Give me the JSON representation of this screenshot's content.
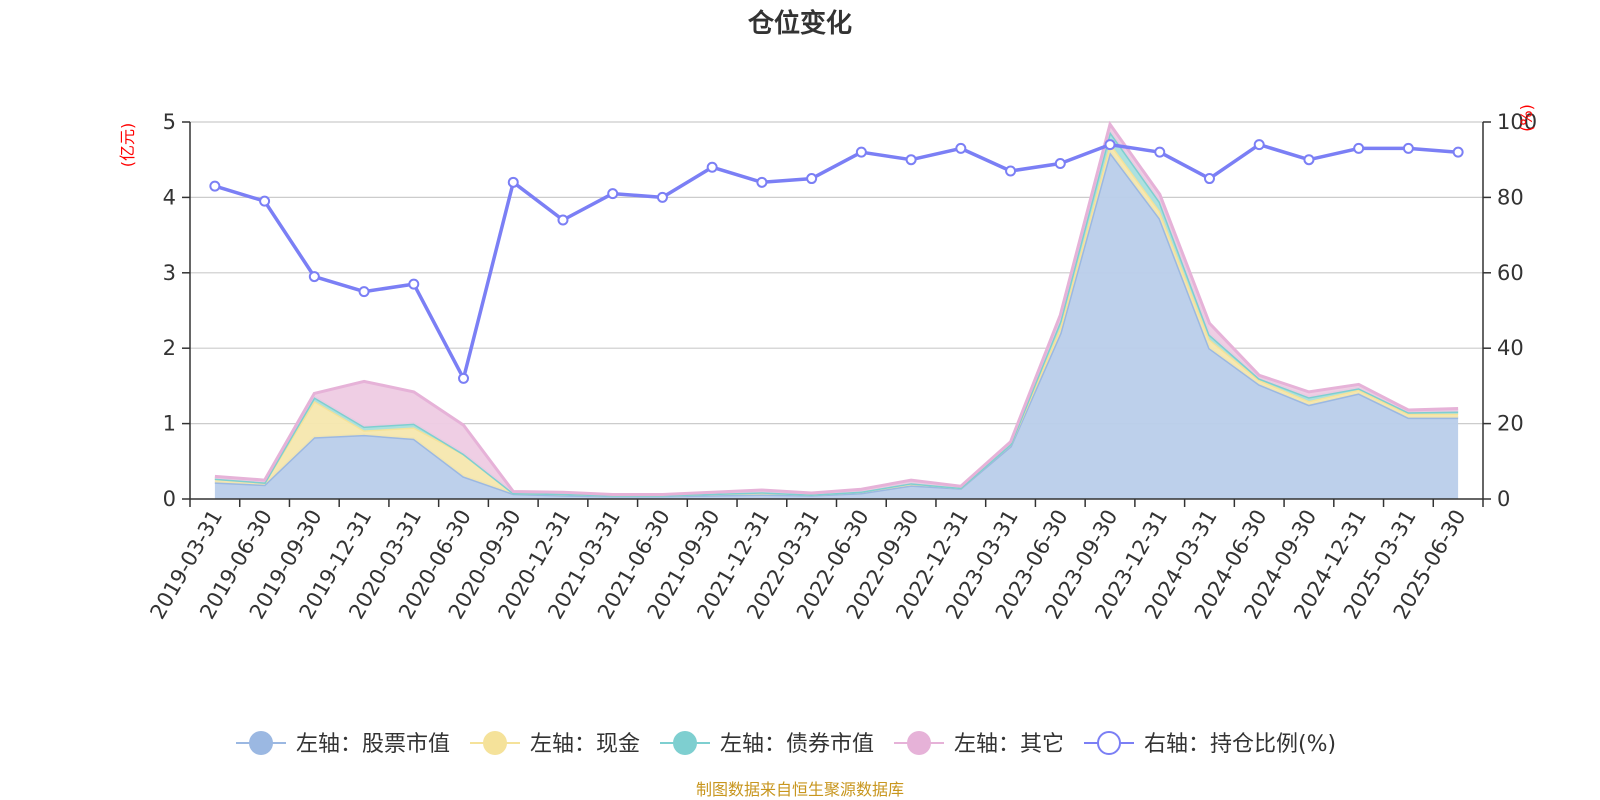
{
  "chart_data": {
    "type": "area",
    "title": "仓位变化",
    "source_note": "制图数据来自恒生聚源数据库",
    "left_axis": {
      "unit_label": "(亿元)",
      "ylim": [
        0,
        5
      ],
      "ticks": [
        "0",
        "1",
        "2",
        "3",
        "4",
        "5"
      ]
    },
    "right_axis": {
      "unit_label": "(%)",
      "ylim": [
        0,
        100
      ],
      "ticks": [
        "0",
        "20",
        "40",
        "60",
        "80",
        "100"
      ]
    },
    "categories": [
      "2019-03-31",
      "2019-06-30",
      "2019-09-30",
      "2019-12-31",
      "2020-03-31",
      "2020-06-30",
      "2020-09-30",
      "2020-12-31",
      "2021-03-31",
      "2021-06-30",
      "2021-09-30",
      "2021-12-31",
      "2022-03-31",
      "2022-06-30",
      "2022-09-30",
      "2022-12-31",
      "2023-03-31",
      "2023-06-30",
      "2023-09-30",
      "2023-12-31",
      "2024-03-31",
      "2024-06-30",
      "2024-09-30",
      "2024-12-31",
      "2025-03-31",
      "2025-06-30"
    ],
    "series": [
      {
        "name": "左轴：股票市值",
        "axis": "left",
        "kind": "area",
        "color": "#9bb8e2",
        "fill": "#b9cdea",
        "values": [
          0.22,
          0.19,
          0.82,
          0.85,
          0.8,
          0.3,
          0.07,
          0.05,
          0.04,
          0.04,
          0.05,
          0.06,
          0.05,
          0.08,
          0.18,
          0.14,
          0.7,
          2.2,
          4.6,
          3.72,
          2.0,
          1.52,
          1.25,
          1.4,
          1.08,
          1.08
        ]
      },
      {
        "name": "左轴：现金",
        "axis": "left",
        "kind": "area",
        "color": "#f5e29a",
        "fill": "#f6e7ae",
        "values": [
          0.05,
          0.03,
          0.48,
          0.06,
          0.15,
          0.3,
          0.01,
          0.02,
          0.01,
          0.01,
          0.02,
          0.03,
          0.01,
          0.02,
          0.03,
          0.01,
          0.03,
          0.08,
          0.12,
          0.1,
          0.12,
          0.06,
          0.05,
          0.05,
          0.05,
          0.05
        ]
      },
      {
        "name": "左轴：债券市值",
        "axis": "left",
        "kind": "area",
        "color": "#7ecfd0",
        "fill": "#a8dfdf",
        "values": [
          0.0,
          0.0,
          0.05,
          0.05,
          0.05,
          0.0,
          0.0,
          0.0,
          0.0,
          0.0,
          0.0,
          0.0,
          0.0,
          0.0,
          0.0,
          0.0,
          0.0,
          0.08,
          0.15,
          0.12,
          0.06,
          0.02,
          0.05,
          0.02,
          0.02,
          0.03
        ]
      },
      {
        "name": "左轴：其它",
        "axis": "left",
        "kind": "area",
        "color": "#e6b2d8",
        "fill": "#eecbe3",
        "values": [
          0.03,
          0.03,
          0.05,
          0.6,
          0.42,
          0.38,
          0.02,
          0.02,
          0.01,
          0.01,
          0.02,
          0.03,
          0.02,
          0.03,
          0.04,
          0.02,
          0.03,
          0.08,
          0.1,
          0.1,
          0.15,
          0.04,
          0.07,
          0.05,
          0.03,
          0.04
        ]
      },
      {
        "name": "右轴：持仓比例(%)",
        "axis": "right",
        "kind": "line",
        "color": "#7b7ff5",
        "values": [
          83,
          79,
          59,
          55,
          57,
          32,
          84,
          74,
          81,
          80,
          88,
          84,
          85,
          92,
          90,
          93,
          87,
          89,
          94,
          92,
          85,
          94,
          90,
          93,
          93,
          92
        ]
      }
    ]
  }
}
